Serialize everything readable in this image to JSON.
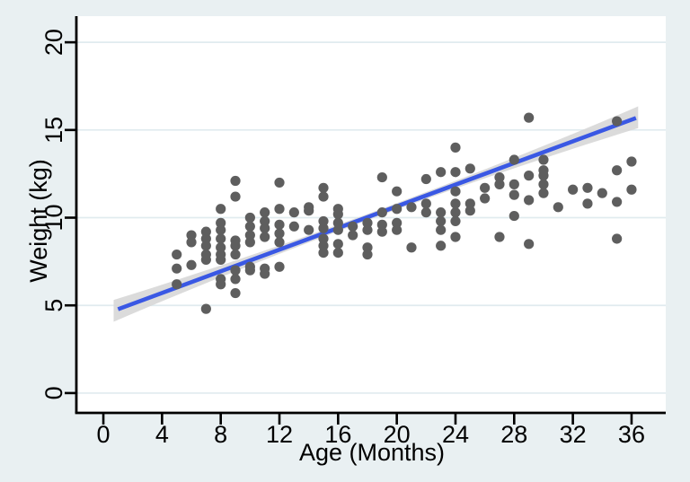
{
  "chart_data": {
    "type": "scatter",
    "title": "",
    "xlabel": "Age (Months)",
    "ylabel": "Weight (kg)",
    "x_ticks": [
      0,
      4,
      8,
      12,
      16,
      20,
      24,
      28,
      32,
      36
    ],
    "y_ticks": [
      0,
      5,
      10,
      15,
      20
    ],
    "xlim": [
      -1.84,
      38.33
    ],
    "ylim": [
      -1.13,
      21.49
    ],
    "grid": "horizontal-only",
    "legend": "none",
    "colors": {
      "background": "#E9F0F2",
      "plot_background": "#FFFFFF",
      "gridline": "#E0EBEF",
      "points": "#5E5E5E",
      "fit_line": "#3A58E4",
      "ci_band": "#D7D7D7",
      "axis": "#000000"
    },
    "series": [
      {
        "name": "observations",
        "type": "scatter",
        "marker": "circle",
        "points": [
          [
            5,
            7.9
          ],
          [
            5,
            7.1
          ],
          [
            5,
            6.2
          ],
          [
            6,
            9.0
          ],
          [
            6,
            8.6
          ],
          [
            6,
            7.3
          ],
          [
            7,
            9.2
          ],
          [
            7,
            8.8
          ],
          [
            7,
            8.4
          ],
          [
            7,
            7.9
          ],
          [
            7,
            7.6
          ],
          [
            7,
            4.8
          ],
          [
            8,
            10.5
          ],
          [
            8,
            9.7
          ],
          [
            8,
            9.3
          ],
          [
            8,
            8.8
          ],
          [
            8,
            8.3
          ],
          [
            8,
            7.9
          ],
          [
            8,
            7.6
          ],
          [
            8,
            6.5
          ],
          [
            8,
            6.2
          ],
          [
            9,
            12.1
          ],
          [
            9,
            11.2
          ],
          [
            9,
            8.7
          ],
          [
            9,
            8.4
          ],
          [
            9,
            7.9
          ],
          [
            9,
            7.0
          ],
          [
            9,
            6.5
          ],
          [
            9,
            5.7
          ],
          [
            10,
            10.0
          ],
          [
            10,
            9.5
          ],
          [
            10,
            9.0
          ],
          [
            10,
            8.6
          ],
          [
            10,
            7.2
          ],
          [
            10,
            7.0
          ],
          [
            11,
            10.3
          ],
          [
            11,
            9.8
          ],
          [
            11,
            9.4
          ],
          [
            11,
            8.9
          ],
          [
            11,
            7.1
          ],
          [
            11,
            6.8
          ],
          [
            12,
            12.0
          ],
          [
            12,
            10.5
          ],
          [
            12,
            9.6
          ],
          [
            12,
            9.1
          ],
          [
            12,
            8.6
          ],
          [
            12,
            7.2
          ],
          [
            13,
            10.3
          ],
          [
            13,
            9.5
          ],
          [
            14,
            10.6
          ],
          [
            14,
            10.4
          ],
          [
            14,
            9.3
          ],
          [
            15,
            11.7
          ],
          [
            15,
            11.2
          ],
          [
            15,
            9.8
          ],
          [
            15,
            9.4
          ],
          [
            15,
            8.8
          ],
          [
            15,
            8.4
          ],
          [
            15,
            8.0
          ],
          [
            16,
            10.5
          ],
          [
            16,
            10.2
          ],
          [
            16,
            9.7
          ],
          [
            16,
            9.3
          ],
          [
            16,
            8.5
          ],
          [
            16,
            8.0
          ],
          [
            17,
            9.5
          ],
          [
            17,
            9.0
          ],
          [
            18,
            9.7
          ],
          [
            18,
            9.3
          ],
          [
            18,
            8.3
          ],
          [
            18,
            7.9
          ],
          [
            19,
            12.3
          ],
          [
            19,
            10.3
          ],
          [
            19,
            9.6
          ],
          [
            19,
            9.2
          ],
          [
            20,
            11.5
          ],
          [
            20,
            10.5
          ],
          [
            20,
            9.7
          ],
          [
            20,
            9.3
          ],
          [
            21,
            10.6
          ],
          [
            21,
            8.3
          ],
          [
            22,
            12.2
          ],
          [
            22,
            10.8
          ],
          [
            22,
            10.3
          ],
          [
            23,
            12.6
          ],
          [
            23,
            10.3
          ],
          [
            23,
            9.8
          ],
          [
            23,
            9.3
          ],
          [
            23,
            8.4
          ],
          [
            24,
            14.0
          ],
          [
            24,
            12.6
          ],
          [
            24,
            11.5
          ],
          [
            24,
            10.8
          ],
          [
            24,
            10.3
          ],
          [
            24,
            9.8
          ],
          [
            24,
            8.9
          ],
          [
            25,
            12.8
          ],
          [
            25,
            10.8
          ],
          [
            25,
            10.4
          ],
          [
            26,
            11.7
          ],
          [
            26,
            11.1
          ],
          [
            27,
            12.3
          ],
          [
            27,
            11.9
          ],
          [
            27,
            8.9
          ],
          [
            28,
            13.3
          ],
          [
            28,
            11.9
          ],
          [
            28,
            11.3
          ],
          [
            28,
            10.1
          ],
          [
            29,
            15.7
          ],
          [
            29,
            12.4
          ],
          [
            29,
            11.0
          ],
          [
            29,
            8.5
          ],
          [
            30,
            13.3
          ],
          [
            30,
            12.7
          ],
          [
            30,
            12.4
          ],
          [
            30,
            11.9
          ],
          [
            30,
            11.4
          ],
          [
            31,
            10.6
          ],
          [
            32,
            11.6
          ],
          [
            33,
            11.7
          ],
          [
            33,
            10.8
          ],
          [
            34,
            11.4
          ],
          [
            35,
            15.5
          ],
          [
            35,
            12.7
          ],
          [
            35,
            10.9
          ],
          [
            35,
            8.8
          ],
          [
            36,
            13.2
          ],
          [
            36,
            11.6
          ]
        ]
      },
      {
        "name": "linear-fit",
        "type": "line",
        "x": [
          1.0,
          36.3
        ],
        "y": [
          4.78,
          15.68
        ]
      },
      {
        "name": "confidence-band",
        "type": "band",
        "x_range": [
          0.7,
          36.45
        ],
        "half_width_center": 0.18,
        "half_width_end": 0.62,
        "center_x": 18.6
      }
    ]
  }
}
